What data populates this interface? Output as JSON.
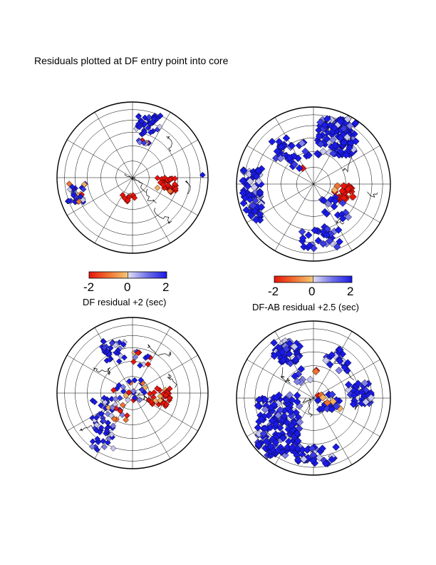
{
  "title": "Residuals plotted at DF entry point into core",
  "colors": {
    "neg": "#e8140c",
    "mid_neg": "#f2a74a",
    "pos": "#1a1ae6",
    "mid_pos": "#c8c8f0",
    "land": "#000000",
    "grid": "#000000"
  },
  "colorbars": [
    {
      "label": "DF residual +2 (sec)",
      "ticks": [
        "-2",
        "0",
        "2"
      ],
      "range": [
        -2,
        2
      ]
    },
    {
      "label": "DF-AB residual +2.5 (sec)",
      "ticks": [
        "-2",
        "0",
        "2"
      ],
      "range": [
        -2,
        2
      ]
    }
  ],
  "maps": [
    {
      "id": "top-left",
      "hemisphere": "south",
      "projection": "orthographic",
      "symbol": "diamond"
    },
    {
      "id": "top-right",
      "hemisphere": "south",
      "projection": "orthographic",
      "symbol": "diamond"
    },
    {
      "id": "bottom-left",
      "hemisphere": "north",
      "projection": "orthographic",
      "symbol": "diamond"
    },
    {
      "id": "bottom-right",
      "hemisphere": "north",
      "projection": "orthographic",
      "symbol": "diamond"
    }
  ]
}
